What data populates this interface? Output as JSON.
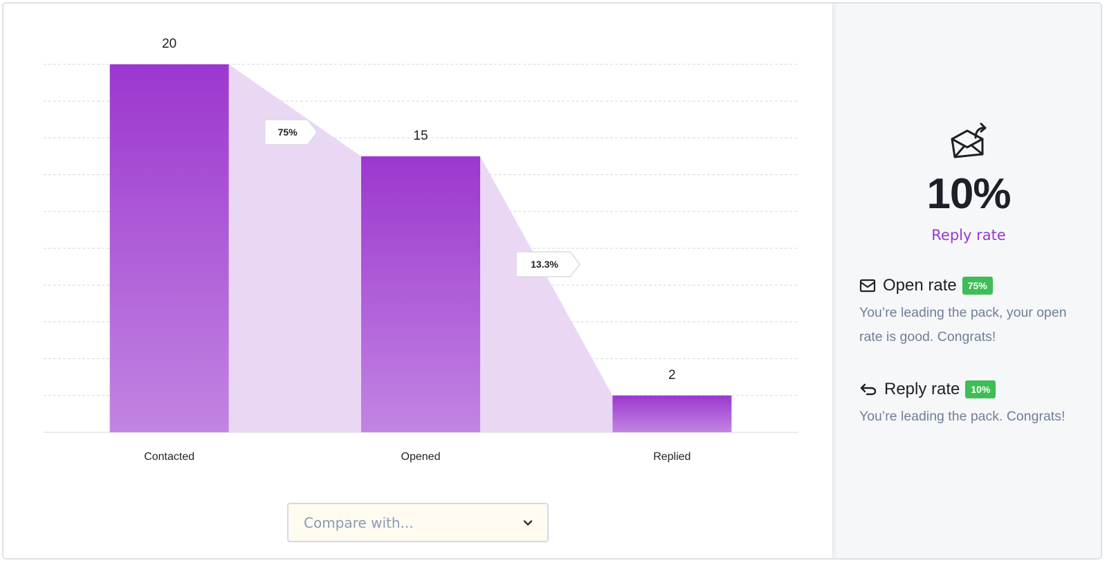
{
  "chart_data": {
    "type": "bar",
    "categories": [
      "Contacted",
      "Opened",
      "Replied"
    ],
    "values": [
      20,
      15,
      2
    ],
    "conversion_labels": [
      "75%",
      "13.3%"
    ],
    "ylim": [
      0,
      20
    ],
    "grid": true,
    "colors": {
      "bar_top": "#9c37cf",
      "bar_bottom": "#c285e2",
      "funnel_fill": "#ead7f4",
      "grid": "#d3d7de"
    }
  },
  "compare": {
    "placeholder": "Compare with..."
  },
  "summary": {
    "hero_icon": "envelope-reply-icon",
    "hero_value": "10%",
    "hero_label": "Reply rate",
    "accent_color": "#9b36cf",
    "metrics": [
      {
        "icon": "envelope-icon",
        "title": "Open rate",
        "badge": "75%",
        "description": "You’re leading the pack, your open rate is good. Congrats!"
      },
      {
        "icon": "reply-arrow-icon",
        "title": "Reply rate",
        "badge": "10%",
        "description": "You’re leading the pack. Congrats!"
      }
    ]
  }
}
